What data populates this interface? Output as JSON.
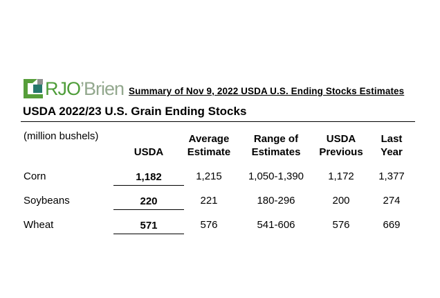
{
  "logo": {
    "rjo": "RJO",
    "brien": "’Brien",
    "mark_description": "square-mark-icon",
    "colors": {
      "icon_green": "#569e3a",
      "icon_gray": "#8f9190",
      "icon_teal": "#26786c",
      "text_green": "#4f9d3a",
      "text_gray_green": "#93a88e"
    }
  },
  "title": "Summary of Nov 9, 2022 USDA U.S. Ending Stocks Estimates",
  "heading": "USDA 2022/23 U.S. Grain Ending Stocks",
  "table": {
    "unit_label": "(million bushels)",
    "columns": [
      {
        "line1": "",
        "line2": "USDA"
      },
      {
        "line1": "Average",
        "line2": "Estimate"
      },
      {
        "line1": "Range of",
        "line2": "Estimates"
      },
      {
        "line1": "USDA",
        "line2": "Previous"
      },
      {
        "line1": "Last",
        "line2": "Year"
      }
    ],
    "rows": [
      {
        "commodity": "Corn",
        "usda": "1,182",
        "avg": "1,215",
        "range": "1,050-1,390",
        "previous": "1,172",
        "last_year": "1,377"
      },
      {
        "commodity": "Soybeans",
        "usda": "220",
        "avg": "221",
        "range": "180-296",
        "previous": "200",
        "last_year": "274"
      },
      {
        "commodity": "Wheat",
        "usda": "571",
        "avg": "576",
        "range": "541-606",
        "previous": "576",
        "last_year": "669"
      }
    ]
  }
}
